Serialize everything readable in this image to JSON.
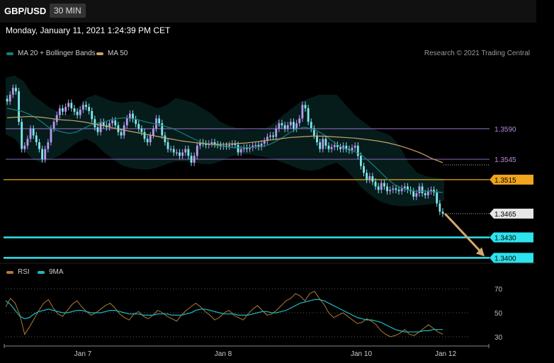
{
  "header": {
    "symbol": "GBP/USD",
    "timeframe": "30 MIN"
  },
  "timestamp": "Monday, January 11, 2021 1:24:39 PM CET",
  "credit": "Research © 2021 Trading Central",
  "colors": {
    "bollinger": "#15807c",
    "ma50": "#c9a36a",
    "bull": "#b79cf0",
    "bear": "#7fe7ec",
    "resistance_purple": "#7b5ea8",
    "orange_level": "#f0a51c",
    "cyan_level": "#2de3ee",
    "arrow": "#d5a86c",
    "rsi": "#b07a36",
    "rsi_ma": "#1fb8c4"
  },
  "chart_data": [
    {
      "type": "candlestick",
      "legend": [
        {
          "name": "MA 20 + Bollinger Bands",
          "color": "#15807c"
        },
        {
          "name": "MA 50",
          "color": "#c9a36a"
        }
      ],
      "x_labels": [
        "Jan 7",
        "Jan 8",
        "Jan 10",
        "Jan 12"
      ],
      "ylim": [
        1.3392,
        1.3695
      ],
      "levels": [
        {
          "value": 1.359,
          "label": "1.3590",
          "kind": "purple"
        },
        {
          "value": 1.3545,
          "label": "1.3545",
          "kind": "purple"
        },
        {
          "value": 1.3515,
          "label": "1.3515",
          "kind": "orange"
        },
        {
          "value": 1.3465,
          "label": "1.3465",
          "kind": "current"
        },
        {
          "value": 1.343,
          "label": "1.3430",
          "kind": "cyan"
        },
        {
          "value": 1.34,
          "label": "1.3400",
          "kind": "cyan"
        }
      ],
      "forecast_arrow": {
        "from": 1.3465,
        "to": 1.34
      },
      "closes": [
        1.363,
        1.364,
        1.365,
        1.3645,
        1.36,
        1.356,
        1.3565,
        1.3575,
        1.359,
        1.358,
        1.357,
        1.356,
        1.3545,
        1.356,
        1.357,
        1.359,
        1.36,
        1.361,
        1.362,
        1.3615,
        1.3622,
        1.3628,
        1.362,
        1.3615,
        1.361,
        1.3618,
        1.3625,
        1.3622,
        1.3616,
        1.3604,
        1.3592,
        1.3585,
        1.36,
        1.3595,
        1.3592,
        1.3598,
        1.3602,
        1.3595,
        1.3585,
        1.358,
        1.3595,
        1.3605,
        1.3612,
        1.3604,
        1.3597,
        1.359,
        1.3585,
        1.3575,
        1.357,
        1.358,
        1.359,
        1.3605,
        1.3598,
        1.358,
        1.357,
        1.356,
        1.356,
        1.3555,
        1.3555,
        1.355,
        1.3555,
        1.356,
        1.355,
        1.354,
        1.355,
        1.3565,
        1.357,
        1.3568,
        1.3566,
        1.3568,
        1.357,
        1.3567,
        1.3566,
        1.3564,
        1.3565,
        1.3564,
        1.3566,
        1.3568,
        1.3566,
        1.3555,
        1.356,
        1.3562,
        1.356,
        1.3562,
        1.3565,
        1.3566,
        1.3563,
        1.3568,
        1.3572,
        1.3578,
        1.358,
        1.3578,
        1.359,
        1.3598,
        1.3595,
        1.359,
        1.3595,
        1.36,
        1.359,
        1.3598,
        1.3605,
        1.3625,
        1.362,
        1.36,
        1.359,
        1.358,
        1.357,
        1.356,
        1.3575,
        1.3565,
        1.356,
        1.3563,
        1.3566,
        1.3563,
        1.356,
        1.3565,
        1.356,
        1.3558,
        1.3562,
        1.3565,
        1.355,
        1.3535,
        1.3525,
        1.3515,
        1.352,
        1.3512,
        1.3505,
        1.35,
        1.351,
        1.3505,
        1.3498,
        1.35,
        1.3502,
        1.35,
        1.3498,
        1.3502,
        1.3505,
        1.35,
        1.3498,
        1.349,
        1.3495,
        1.3505,
        1.3495,
        1.3492,
        1.3498,
        1.35,
        1.3496,
        1.348,
        1.3468,
        1.3465
      ],
      "ma20": [
        1.362,
        1.3618,
        1.3616,
        1.3612,
        1.3607,
        1.36,
        1.3592,
        1.3588,
        1.3585,
        1.3583,
        1.3585,
        1.359,
        1.3595,
        1.3598,
        1.36,
        1.3603,
        1.3605,
        1.3606,
        1.3605,
        1.3603,
        1.36,
        1.3598,
        1.3596,
        1.3593,
        1.359,
        1.3585,
        1.358,
        1.3575,
        1.357,
        1.3568,
        1.3566,
        1.3564,
        1.3563,
        1.3562,
        1.3562,
        1.3562,
        1.3563,
        1.3564,
        1.3567,
        1.3572,
        1.3578,
        1.3585,
        1.359,
        1.3592,
        1.359,
        1.3586,
        1.358,
        1.3572,
        1.3565,
        1.356,
        1.3557,
        1.3553,
        1.3545,
        1.3536,
        1.3526,
        1.3516,
        1.3508,
        1.3503,
        1.35,
        1.3498,
        1.3498,
        1.3498,
        1.3497,
        1.3496
      ],
      "ma50": [
        1.3606,
        1.3607,
        1.3608,
        1.3607,
        1.3605,
        1.3603,
        1.3602,
        1.36,
        1.3597,
        1.3594,
        1.359,
        1.3587,
        1.3584,
        1.3581,
        1.3578,
        1.3575,
        1.3572,
        1.357,
        1.3568,
        1.3567,
        1.3567,
        1.3568,
        1.3569,
        1.3571,
        1.3573,
        1.3575,
        1.3577,
        1.3578,
        1.3579,
        1.3579,
        1.3578,
        1.3577,
        1.3576,
        1.3574,
        1.3572,
        1.3569,
        1.3565,
        1.356,
        1.3554,
        1.3546,
        1.354
      ],
      "band_upper": [
        1.3665,
        1.3668,
        1.366,
        1.364,
        1.363,
        1.362,
        1.3615,
        1.361,
        1.362,
        1.3635,
        1.364,
        1.3635,
        1.363,
        1.3628,
        1.363,
        1.363,
        1.3625,
        1.362,
        1.3625,
        1.3635,
        1.3632,
        1.3628,
        1.362,
        1.3612,
        1.36,
        1.3594,
        1.359,
        1.3588,
        1.3588,
        1.359,
        1.3598,
        1.361,
        1.362,
        1.363,
        1.3635,
        1.364,
        1.364,
        1.364,
        1.3625,
        1.361,
        1.36,
        1.359,
        1.3585,
        1.358,
        1.3565,
        1.354,
        1.3525,
        1.352,
        1.3518,
        1.3516
      ],
      "band_lower": [
        1.3582,
        1.3575,
        1.356,
        1.3545,
        1.354,
        1.3545,
        1.355,
        1.356,
        1.357,
        1.3575,
        1.3568,
        1.3555,
        1.3545,
        1.3536,
        1.3532,
        1.353,
        1.353,
        1.3533,
        1.3538,
        1.3542,
        1.3542,
        1.354,
        1.3538,
        1.3538,
        1.3542,
        1.3548,
        1.3552,
        1.3552,
        1.355,
        1.3548,
        1.3545,
        1.354,
        1.3535,
        1.353,
        1.3528,
        1.353,
        1.3536,
        1.354,
        1.353,
        1.3515,
        1.35,
        1.349,
        1.3482,
        1.3478,
        1.3476,
        1.3476,
        1.3477,
        1.3478,
        1.348,
        1.3484
      ]
    },
    {
      "type": "line",
      "legend": [
        {
          "name": "RSI",
          "color": "#b07a36"
        },
        {
          "name": "9MA",
          "color": "#1fb8c4"
        }
      ],
      "yticks": [
        30,
        50,
        70
      ],
      "ylim": [
        24,
        76
      ],
      "rsi": [
        55,
        62,
        58,
        48,
        32,
        38,
        45,
        52,
        58,
        61,
        54,
        49,
        47,
        52,
        57,
        60,
        55,
        51,
        48,
        50,
        53,
        56,
        58,
        54,
        49,
        46,
        44,
        49,
        51,
        47,
        45,
        48,
        52,
        50,
        47,
        45,
        43,
        48,
        52,
        55,
        58,
        55,
        51,
        48,
        44,
        46,
        50,
        52,
        48,
        46,
        44,
        49,
        53,
        56,
        52,
        48,
        49,
        52,
        56,
        60,
        62,
        66,
        64,
        60,
        66,
        68,
        62,
        57,
        50,
        46,
        48,
        50,
        47,
        44,
        41,
        42,
        45,
        43,
        40,
        35,
        32,
        30,
        31,
        33,
        36,
        32,
        31,
        34,
        37,
        40,
        37,
        34,
        32
      ],
      "rsi_ma": [
        60,
        57,
        52,
        47,
        45,
        46,
        49,
        51,
        52,
        53,
        52,
        51,
        50,
        50,
        51,
        52,
        52,
        51,
        50,
        50,
        50,
        51,
        52,
        52,
        51,
        50,
        49,
        49,
        49,
        48,
        48,
        48,
        49,
        49,
        49,
        48,
        48,
        48,
        49,
        50,
        52,
        53,
        53,
        52,
        51,
        50,
        49,
        49,
        49,
        48,
        48,
        48,
        49,
        50,
        51,
        51,
        50,
        50,
        51,
        52,
        54,
        56,
        58,
        59,
        60,
        61,
        61,
        60,
        58,
        56,
        54,
        52,
        50,
        48,
        46,
        45,
        44,
        44,
        43,
        42,
        40,
        38,
        36,
        35,
        34,
        34,
        34,
        34,
        35,
        35,
        36,
        36,
        36
      ]
    }
  ]
}
